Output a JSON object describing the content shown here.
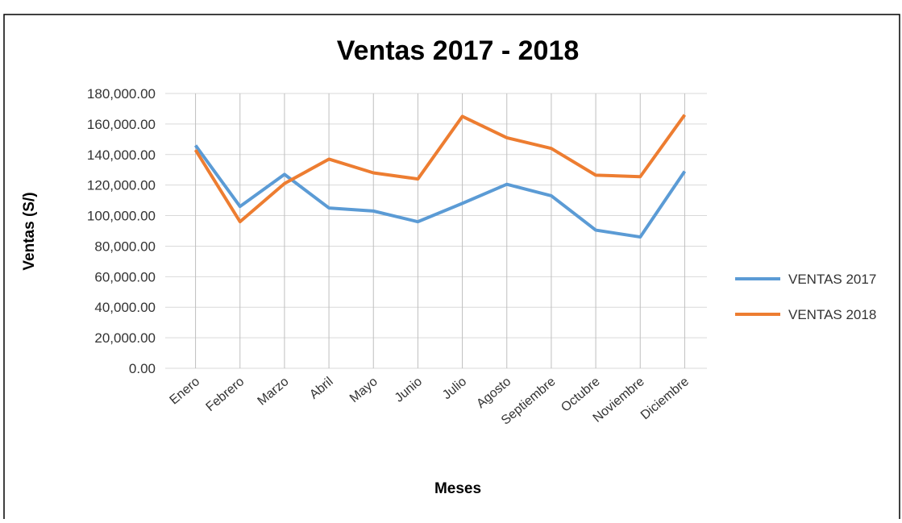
{
  "chart_data": {
    "type": "line",
    "title": "Ventas 2017 - 2018",
    "x_label": "Meses",
    "y_label": "Ventas  (S/)",
    "categories": [
      "Enero",
      "Febrero",
      "Marzo",
      "Abril",
      "Mayo",
      "Junio",
      "Julio",
      "Agosto",
      "Septiembre",
      "Octubre",
      "Noviembre",
      "Diciembre"
    ],
    "series": [
      {
        "name": "VENTAS 2017",
        "color": "#5b9bd5",
        "values": [
          146000,
          106000,
          127000,
          105000,
          103000,
          96000,
          108000,
          120500,
          113000,
          90500,
          86000,
          129000
        ]
      },
      {
        "name": "VENTAS 2018",
        "color": "#ed7d31",
        "values": [
          143000,
          96000,
          121000,
          137000,
          128000,
          124000,
          165000,
          151000,
          144000,
          126500,
          125500,
          166000
        ]
      }
    ],
    "ylim": [
      0,
      180000
    ],
    "yticks": [
      {
        "value": 0,
        "label": "0.00"
      },
      {
        "value": 20000,
        "label": "20,000.00"
      },
      {
        "value": 40000,
        "label": "40,000.00"
      },
      {
        "value": 60000,
        "label": "60,000.00"
      },
      {
        "value": 80000,
        "label": "80,000.00"
      },
      {
        "value": 100000,
        "label": "100,000.00"
      },
      {
        "value": 120000,
        "label": "120,000.00"
      },
      {
        "value": 140000,
        "label": "140,000.00"
      },
      {
        "value": 160000,
        "label": "160,000.00"
      },
      {
        "value": 180000,
        "label": "180,000.00"
      }
    ],
    "grid": true,
    "legend": "right"
  }
}
